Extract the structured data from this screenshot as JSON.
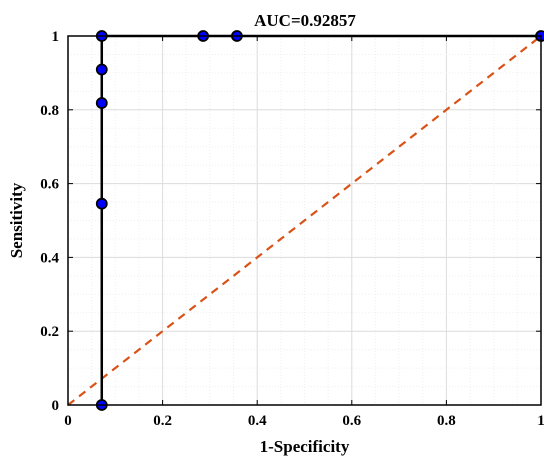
{
  "chart_data": {
    "type": "line",
    "title": "AUC=0.92857",
    "xlabel": "1-Specificity",
    "ylabel": "Sensitivity",
    "xlim": [
      0,
      1
    ],
    "ylim": [
      0,
      1
    ],
    "x_ticks": [
      "0",
      "0.2",
      "0.4",
      "0.6",
      "0.8",
      "1"
    ],
    "y_ticks": [
      "0",
      "0.2",
      "0.4",
      "0.6",
      "0.8",
      "1"
    ],
    "grid": "on",
    "series": [
      {
        "values": [
          [
            0.0714,
            0.0
          ],
          [
            0.0714,
            0.5455
          ],
          [
            0.0714,
            0.8182
          ],
          [
            0.0714,
            0.9091
          ],
          [
            0.0714,
            1.0
          ],
          [
            0.2857,
            1.0
          ],
          [
            0.3571,
            1.0
          ],
          [
            1.0,
            1.0
          ]
        ],
        "line_color": "#000000",
        "marker_color": "#0000ff"
      },
      {
        "values": [
          [
            0,
            0
          ],
          [
            1,
            1
          ]
        ],
        "line_style": "dashed",
        "line_color": "#d95319"
      }
    ]
  }
}
